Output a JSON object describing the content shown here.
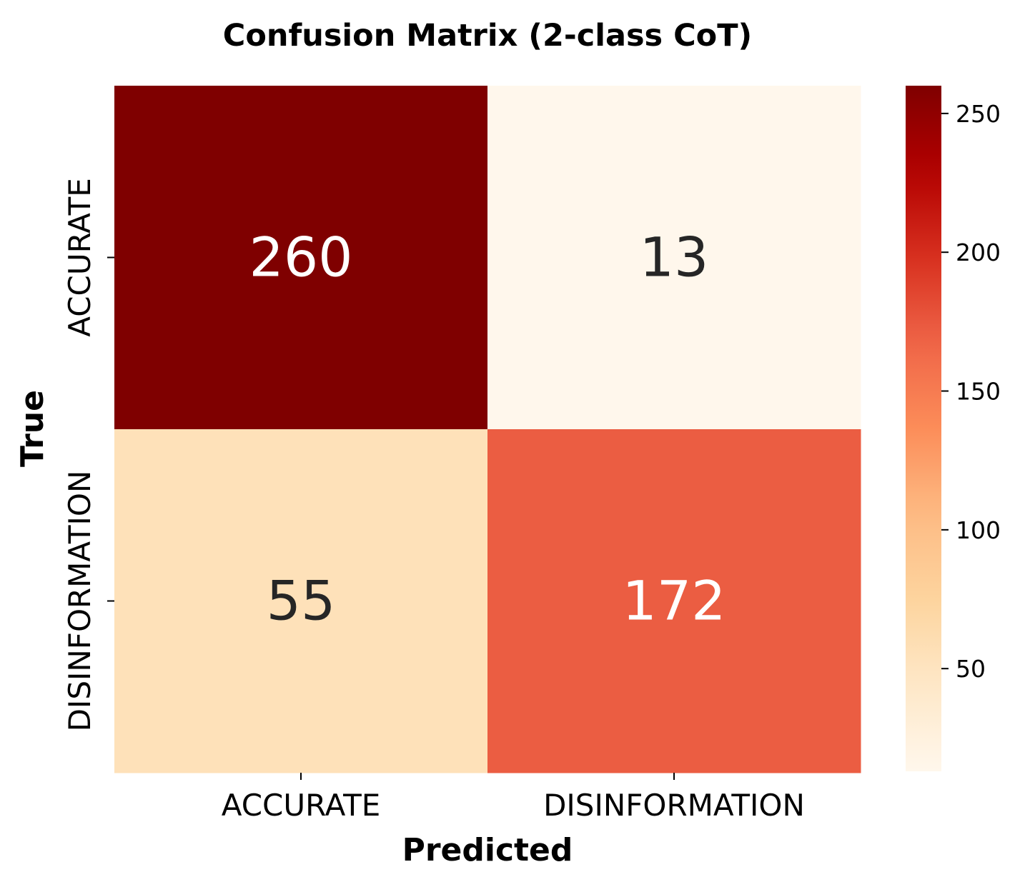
{
  "chart_data": {
    "type": "heatmap",
    "title": "Confusion Matrix (2-class CoT)",
    "xlabel": "Predicted",
    "ylabel": "True",
    "x_categories": [
      "ACCURATE",
      "DISINFORMATION"
    ],
    "y_categories": [
      "ACCURATE",
      "DISINFORMATION"
    ],
    "values": [
      [
        260,
        13
      ],
      [
        55,
        172
      ]
    ],
    "colormap": "OrRd",
    "colorbar": {
      "range": [
        13,
        260
      ],
      "ticks": [
        50,
        100,
        150,
        200,
        250
      ],
      "tick_labels": [
        "50",
        "100",
        "150",
        "200",
        "250"
      ]
    },
    "colors": {
      "low": "#fff7ec",
      "high": "#7f0000",
      "text_dark": "#262626",
      "text_light": "#ffffff"
    }
  }
}
